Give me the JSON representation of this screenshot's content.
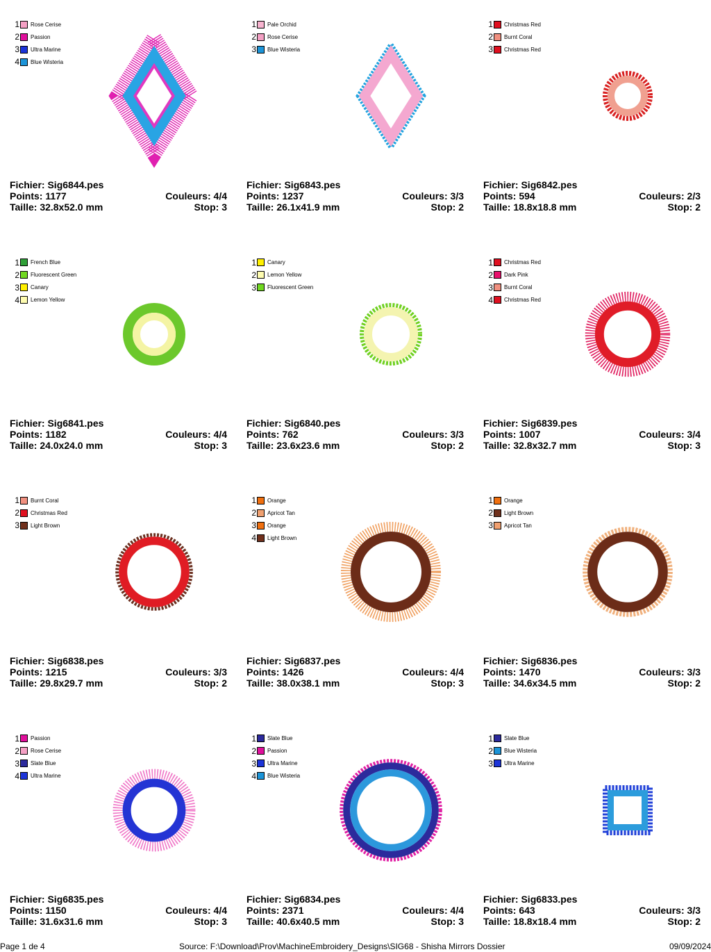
{
  "labels": {
    "file": "Fichier:",
    "points": "Points:",
    "colors": "Couleurs:",
    "size": "Taille:",
    "stop": "Stop:"
  },
  "designs": [
    {
      "file": "Sig6844.pes",
      "points": "1177",
      "colors": "4/4",
      "size": "32.8x52.0 mm",
      "stop": "3",
      "shape": "diamond",
      "scale": 1.0,
      "threads": [
        {
          "name": "Rose Cerise",
          "color": "#f4a0c4"
        },
        {
          "name": "Passion",
          "color": "#e0109c"
        },
        {
          "name": "Ultra Marine",
          "color": "#1c34d8"
        },
        {
          "name": "Blue Wisteria",
          "color": "#1c94d8"
        }
      ],
      "art": [
        {
          "type": "rays",
          "color": "#e020b0",
          "width": 22
        },
        {
          "type": "band",
          "color": "#29a4e4",
          "width": 16
        },
        {
          "type": "band",
          "color": "#e038c0",
          "width": 4
        }
      ]
    },
    {
      "file": "Sig6843.pes",
      "points": "1237",
      "colors": "3/3",
      "size": "26.1x41.9 mm",
      "stop": "2",
      "shape": "diamond",
      "scale": 0.8,
      "threads": [
        {
          "name": "Pale Orchid",
          "color": "#f8b4d0"
        },
        {
          "name": "Rose Cerise",
          "color": "#f4a0c4"
        },
        {
          "name": "Blue Wisteria",
          "color": "#1c94d8"
        }
      ],
      "art": [
        {
          "type": "dots",
          "color": "#22a4e0",
          "width": 7
        },
        {
          "type": "band",
          "color": "#f4a8d0",
          "width": 14
        }
      ]
    },
    {
      "file": "Sig6842.pes",
      "points": "594",
      "colors": "2/3",
      "size": "18.8x18.8 mm",
      "stop": "2",
      "shape": "circle",
      "scale": 0.4,
      "threads": [
        {
          "name": "Christmas Red",
          "color": "#e01020"
        },
        {
          "name": "Burnt Coral",
          "color": "#f09080"
        },
        {
          "name": "Christmas Red",
          "color": "#e01020"
        }
      ],
      "art": [
        {
          "type": "dots",
          "color": "#d82020",
          "width": 7
        },
        {
          "type": "band",
          "color": "#f0a090",
          "width": 10
        }
      ]
    },
    {
      "file": "Sig6841.pes",
      "points": "1182",
      "colors": "4/4",
      "size": "24.0x24.0 mm",
      "stop": "3",
      "shape": "circle",
      "scale": 0.5,
      "threads": [
        {
          "name": "French Blue",
          "color": "#30a038"
        },
        {
          "name": "Fluorescent Green",
          "color": "#70d820"
        },
        {
          "name": "Canary",
          "color": "#fff000"
        },
        {
          "name": "Lemon Yellow",
          "color": "#fefcb0"
        }
      ],
      "art": [
        {
          "type": "band",
          "color": "#6cc82c",
          "width": 14
        },
        {
          "type": "band",
          "color": "#f4f4a4",
          "width": 11
        }
      ]
    },
    {
      "file": "Sig6840.pes",
      "points": "762",
      "colors": "3/3",
      "size": "23.6x23.6 mm",
      "stop": "2",
      "shape": "circle",
      "scale": 0.5,
      "threads": [
        {
          "name": "Canary",
          "color": "#fff000"
        },
        {
          "name": "Lemon Yellow",
          "color": "#fefcb0"
        },
        {
          "name": "Fluorescent Green",
          "color": "#70d820"
        }
      ],
      "art": [
        {
          "type": "dots",
          "color": "#70d020",
          "width": 6
        },
        {
          "type": "band",
          "color": "#f4f4b0",
          "width": 12
        }
      ]
    },
    {
      "file": "Sig6839.pes",
      "points": "1007",
      "colors": "3/4",
      "size": "32.8x32.7 mm",
      "stop": "3",
      "shape": "circle",
      "scale": 0.68,
      "threads": [
        {
          "name": "Christmas Red",
          "color": "#e01020"
        },
        {
          "name": "Dark Pink",
          "color": "#e8106c"
        },
        {
          "name": "Burnt Coral",
          "color": "#f09080"
        },
        {
          "name": "Christmas Red",
          "color": "#e01020"
        }
      ],
      "art": [
        {
          "type": "rays",
          "color": "#e02060",
          "width": 14
        },
        {
          "type": "band",
          "color": "#e01c28",
          "width": 13
        }
      ]
    },
    {
      "file": "Sig6838.pes",
      "points": "1215",
      "colors": "3/3",
      "size": "29.8x29.7 mm",
      "stop": "2",
      "shape": "circle",
      "scale": 0.62,
      "threads": [
        {
          "name": "Burnt Coral",
          "color": "#f09080"
        },
        {
          "name": "Christmas Red",
          "color": "#e01020"
        },
        {
          "name": "Light Brown",
          "color": "#70301c"
        }
      ],
      "art": [
        {
          "type": "dots",
          "color": "#6c3020",
          "width": 5
        },
        {
          "type": "band",
          "color": "#e01c24",
          "width": 12
        }
      ]
    },
    {
      "file": "Sig6837.pes",
      "points": "1426",
      "colors": "4/4",
      "size": "38.0x38.1 mm",
      "stop": "3",
      "shape": "circle",
      "scale": 0.8,
      "threads": [
        {
          "name": "Orange",
          "color": "#f07010"
        },
        {
          "name": "Apricot Tan",
          "color": "#f0a070"
        },
        {
          "name": "Orange",
          "color": "#f07010"
        },
        {
          "name": "Light Brown",
          "color": "#70301c"
        }
      ],
      "art": [
        {
          "type": "rays",
          "color": "#f0a060",
          "width": 14
        },
        {
          "type": "band",
          "color": "#6c2c18",
          "width": 14
        }
      ]
    },
    {
      "file": "Sig6836.pes",
      "points": "1470",
      "colors": "3/3",
      "size": "34.6x34.5 mm",
      "stop": "2",
      "shape": "circle",
      "scale": 0.72,
      "threads": [
        {
          "name": "Orange",
          "color": "#f07010"
        },
        {
          "name": "Light Brown",
          "color": "#70301c"
        },
        {
          "name": "Apricot Tan",
          "color": "#f0a070"
        }
      ],
      "art": [
        {
          "type": "dots",
          "color": "#f0b07c",
          "width": 7
        },
        {
          "type": "band",
          "color": "#6c2c18",
          "width": 14
        }
      ]
    },
    {
      "file": "Sig6835.pes",
      "points": "1150",
      "colors": "4/4",
      "size": "31.6x31.6 mm",
      "stop": "3",
      "shape": "circle",
      "scale": 0.66,
      "threads": [
        {
          "name": "Passion",
          "color": "#e0109c"
        },
        {
          "name": "Rose Cerise",
          "color": "#f4a0c4"
        },
        {
          "name": "Slate Blue",
          "color": "#2c2a9c"
        },
        {
          "name": "Ultra Marine",
          "color": "#1c34d8"
        }
      ],
      "art": [
        {
          "type": "rays",
          "color": "#f078c8",
          "width": 14
        },
        {
          "type": "band",
          "color": "#2434d4",
          "width": 12
        }
      ]
    },
    {
      "file": "Sig6834.pes",
      "points": "2371",
      "colors": "4/4",
      "size": "40.6x40.5 mm",
      "stop": "3",
      "shape": "circle",
      "scale": 0.82,
      "threads": [
        {
          "name": "Slate Blue",
          "color": "#2c2a9c"
        },
        {
          "name": "Passion",
          "color": "#e0109c"
        },
        {
          "name": "Ultra Marine",
          "color": "#1c34d8"
        },
        {
          "name": "Blue Wisteria",
          "color": "#1c94d8"
        }
      ],
      "art": [
        {
          "type": "dots",
          "color": "#e020a4",
          "width": 5
        },
        {
          "type": "band",
          "color": "#2c2a9c",
          "width": 10
        },
        {
          "type": "band",
          "color": "#2c98dc",
          "width": 10
        }
      ]
    },
    {
      "file": "Sig6833.pes",
      "points": "643",
      "colors": "3/3",
      "size": "18.8x18.4 mm",
      "stop": "2",
      "shape": "square",
      "scale": 0.4,
      "threads": [
        {
          "name": "Slate Blue",
          "color": "#2c2a9c"
        },
        {
          "name": "Blue Wisteria",
          "color": "#1c94d8"
        },
        {
          "name": "Ultra Marine",
          "color": "#1c34d8"
        }
      ],
      "art": [
        {
          "type": "dots",
          "color": "#2040d8",
          "width": 7
        },
        {
          "type": "band",
          "color": "#2c9cdc",
          "width": 9
        }
      ]
    }
  ],
  "footer": {
    "page": "Page 1 de 4",
    "source": "Source: F:\\Download\\Prov\\MachineEmbroidery_Designs\\SIG68 - Shisha Mirrors Dossier",
    "date": "09/09/2024"
  }
}
